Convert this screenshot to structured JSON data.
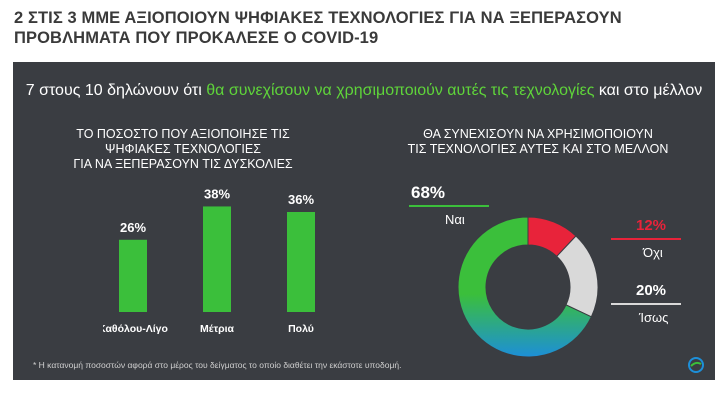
{
  "page": {
    "title": "2 ΣΤΙΣ 3 ΜΜΕ ΑΞΙΟΠΟΙΟΥΝ ΨΗΦΙΑΚΕΣ ΤΕΧΝΟΛΟΓΙΕΣ ΓΙΑ ΝΑ ΞΕΠΕΡΑΣΟΥΝ\nΠΡΟΒΛΗΜΑΤΑ ΠΟΥ ΠΡΟΚΑΛΕΣΕ Ο COVID-19"
  },
  "headline": {
    "pre": "7 στους 10  δηλώνουν ότι ",
    "highlight": "θα συνεχίσουν να χρησιμοποιούν αυτές τις τεχνολογίες",
    "post": " και στο μέλλον"
  },
  "footnote": "* Η κατανομή ποσοστών αφορά στο μέρος του δείγματος το οποίο διαθέτει την εκάστοτε υποδομή.",
  "colors": {
    "bar": "#3bbf3b",
    "highlight": "#5fd43a",
    "yes": "#3bbf3b",
    "no": "#e8233a",
    "maybe": "#d9d9d9",
    "blue": "#1d8fd8"
  },
  "chart_data": [
    {
      "type": "bar",
      "title": "ΤΟ ΠΟΣΟΣΤΟ ΠΟΥ ΑΞΙΟΠΟΙΗΣΕ ΤΙΣ ΨΗΦΙΑΚΕΣ ΤΕΧΝΟΛΟΓΙΕΣ\nΓΙΑ ΝΑ ΞΕΠΕΡΑΣΟΥΝ ΤΙΣ ΔΥΣΚΟΛΙΕΣ",
      "categories": [
        "Καθόλου-Λίγο",
        "Μέτρια",
        "Πολύ"
      ],
      "values": [
        26,
        38,
        36
      ],
      "value_labels": [
        "26%",
        "38%",
        "36%"
      ],
      "ylim": [
        0,
        45
      ]
    },
    {
      "type": "pie",
      "title": "ΘΑ ΣΥΝΕΧΙΣΟΥΝ ΝΑ ΧΡΗΣΙΜΟΠΟΙΟΥΝ\nΤΙΣ ΤΕΧΝΟΛΟΓΙΕΣ ΑΥΤΕΣ ΚΑΙ ΣΤΟ ΜΕΛΛΟΝ",
      "labels": [
        "Ναι",
        "Όχι",
        "Ίσως"
      ],
      "values": [
        68,
        12,
        20
      ],
      "value_labels": [
        "68%",
        "12%",
        "20%"
      ]
    }
  ]
}
